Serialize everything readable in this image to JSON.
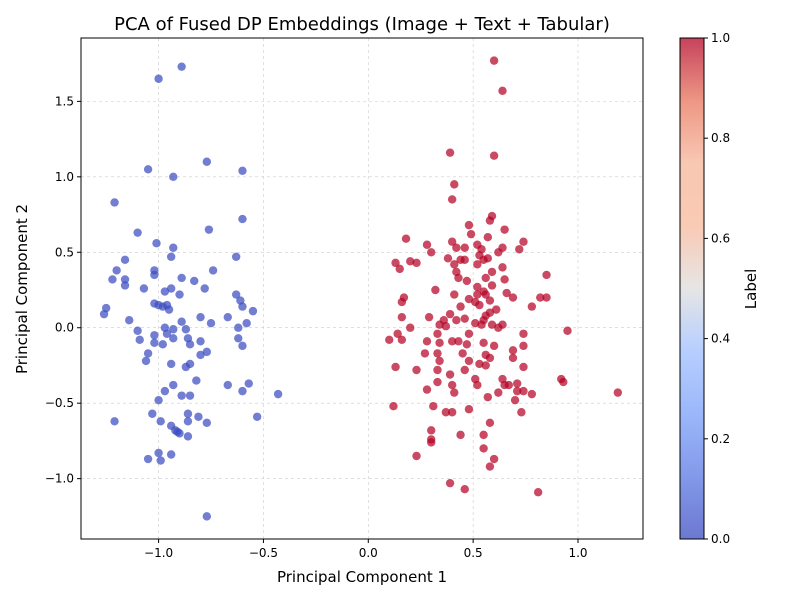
{
  "chart_data": {
    "type": "scatter",
    "title": "PCA of Fused DP Embeddings (Image + Text + Tabular)",
    "xlabel": "Principal Component 1",
    "ylabel": "Principal Component 2",
    "xlim": [
      -1.37,
      1.31
    ],
    "ylim": [
      -1.4,
      1.92
    ],
    "xticks": [
      -1.0,
      -0.5,
      0.0,
      0.5,
      1.0
    ],
    "xtick_labels": [
      "−1.0",
      "−0.5",
      "0.0",
      "0.5",
      "1.0"
    ],
    "yticks": [
      -1.0,
      -0.5,
      0.0,
      0.5,
      1.0,
      1.5
    ],
    "ytick_labels": [
      "−1.0",
      "−0.5",
      "0.0",
      "0.5",
      "1.0",
      "1.5"
    ],
    "grid": true,
    "colorbar": {
      "label": "Label",
      "range": [
        0.0,
        1.0
      ],
      "ticks": [
        0.0,
        0.2,
        0.4,
        0.6,
        0.8,
        1.0
      ],
      "tick_labels": [
        "0.0",
        "0.2",
        "0.4",
        "0.6",
        "0.8",
        "1.0"
      ],
      "colormap": "coolwarm",
      "low_color": "#3b4cc0",
      "mid_color": "#dddddd",
      "high_color": "#b40426"
    },
    "series": [
      {
        "label_value": 0,
        "color": "#3b4cc0",
        "points": [
          [
            -1.0,
            1.65
          ],
          [
            -0.89,
            1.73
          ],
          [
            -1.05,
            1.05
          ],
          [
            -0.93,
            1.0
          ],
          [
            -0.77,
            1.1
          ],
          [
            -0.6,
            1.04
          ],
          [
            -1.21,
            0.83
          ],
          [
            -0.6,
            0.72
          ],
          [
            -1.1,
            0.63
          ],
          [
            -0.76,
            0.65
          ],
          [
            -1.01,
            0.56
          ],
          [
            -0.93,
            0.53
          ],
          [
            -1.16,
            0.45
          ],
          [
            -0.94,
            0.47
          ],
          [
            -0.63,
            0.47
          ],
          [
            -1.2,
            0.38
          ],
          [
            -1.02,
            0.38
          ],
          [
            -0.74,
            0.38
          ],
          [
            -1.22,
            0.32
          ],
          [
            -1.16,
            0.32
          ],
          [
            -1.02,
            0.35
          ],
          [
            -0.89,
            0.33
          ],
          [
            -0.83,
            0.31
          ],
          [
            -1.16,
            0.28
          ],
          [
            -1.07,
            0.26
          ],
          [
            -0.94,
            0.26
          ],
          [
            -0.78,
            0.26
          ],
          [
            -0.97,
            0.24
          ],
          [
            -0.9,
            0.22
          ],
          [
            -0.63,
            0.22
          ],
          [
            -0.61,
            0.18
          ],
          [
            -1.02,
            0.16
          ],
          [
            -1.0,
            0.15
          ],
          [
            -0.98,
            0.14
          ],
          [
            -0.96,
            0.15
          ],
          [
            -0.95,
            0.12
          ],
          [
            -0.6,
            0.14
          ],
          [
            -1.25,
            0.13
          ],
          [
            -1.26,
            0.09
          ],
          [
            -0.55,
            0.11
          ],
          [
            -0.8,
            0.07
          ],
          [
            -0.67,
            0.07
          ],
          [
            -1.14,
            0.05
          ],
          [
            -0.89,
            0.04
          ],
          [
            -0.75,
            0.03
          ],
          [
            -0.58,
            0.03
          ],
          [
            -0.97,
            0.0
          ],
          [
            -0.93,
            -0.01
          ],
          [
            -0.87,
            -0.01
          ],
          [
            -0.62,
            0.0
          ],
          [
            -1.1,
            -0.02
          ],
          [
            -0.96,
            -0.04
          ],
          [
            -1.02,
            -0.05
          ],
          [
            -1.09,
            -0.08
          ],
          [
            -0.93,
            -0.07
          ],
          [
            -0.86,
            -0.07
          ],
          [
            -0.8,
            -0.09
          ],
          [
            -0.62,
            -0.07
          ],
          [
            -1.02,
            -0.1
          ],
          [
            -0.98,
            -0.11
          ],
          [
            -0.85,
            -0.11
          ],
          [
            -0.6,
            -0.12
          ],
          [
            -1.05,
            -0.17
          ],
          [
            -0.8,
            -0.18
          ],
          [
            -0.77,
            -0.16
          ],
          [
            -1.06,
            -0.22
          ],
          [
            -0.94,
            -0.24
          ],
          [
            -0.85,
            -0.24
          ],
          [
            -0.87,
            -0.26
          ],
          [
            -0.82,
            -0.35
          ],
          [
            -0.67,
            -0.38
          ],
          [
            -0.57,
            -0.37
          ],
          [
            -0.93,
            -0.38
          ],
          [
            -0.97,
            -0.42
          ],
          [
            -0.6,
            -0.42
          ],
          [
            -0.43,
            -0.44
          ],
          [
            -0.89,
            -0.45
          ],
          [
            -0.85,
            -0.45
          ],
          [
            -1.0,
            -0.48
          ],
          [
            -1.03,
            -0.57
          ],
          [
            -0.86,
            -0.57
          ],
          [
            -0.81,
            -0.59
          ],
          [
            -0.53,
            -0.59
          ],
          [
            -1.21,
            -0.62
          ],
          [
            -0.99,
            -0.62
          ],
          [
            -0.86,
            -0.62
          ],
          [
            -0.77,
            -0.63
          ],
          [
            -0.94,
            -0.65
          ],
          [
            -0.92,
            -0.68
          ],
          [
            -0.91,
            -0.69
          ],
          [
            -0.9,
            -0.7
          ],
          [
            -0.86,
            -0.72
          ],
          [
            -1.0,
            -0.83
          ],
          [
            -0.94,
            -0.84
          ],
          [
            -1.05,
            -0.87
          ],
          [
            -0.99,
            -0.88
          ],
          [
            -0.77,
            -1.25
          ]
        ]
      },
      {
        "label_value": 1,
        "color": "#b40426",
        "points": [
          [
            0.6,
            1.77
          ],
          [
            0.64,
            1.57
          ],
          [
            0.39,
            1.16
          ],
          [
            0.6,
            1.14
          ],
          [
            0.41,
            0.95
          ],
          [
            0.4,
            0.85
          ],
          [
            0.59,
            0.74
          ],
          [
            0.58,
            0.71
          ],
          [
            0.48,
            0.68
          ],
          [
            0.65,
            0.65
          ],
          [
            0.49,
            0.62
          ],
          [
            0.57,
            0.6
          ],
          [
            0.18,
            0.59
          ],
          [
            0.4,
            0.57
          ],
          [
            0.52,
            0.55
          ],
          [
            0.74,
            0.57
          ],
          [
            0.28,
            0.55
          ],
          [
            0.42,
            0.53
          ],
          [
            0.46,
            0.53
          ],
          [
            0.54,
            0.52
          ],
          [
            0.3,
            0.5
          ],
          [
            0.53,
            0.48
          ],
          [
            0.62,
            0.5
          ],
          [
            0.64,
            0.53
          ],
          [
            0.72,
            0.52
          ],
          [
            0.55,
            0.45
          ],
          [
            0.44,
            0.45
          ],
          [
            0.46,
            0.45
          ],
          [
            0.57,
            0.46
          ],
          [
            0.2,
            0.44
          ],
          [
            0.23,
            0.43
          ],
          [
            0.13,
            0.43
          ],
          [
            0.38,
            0.46
          ],
          [
            0.41,
            0.42
          ],
          [
            0.52,
            0.42
          ],
          [
            0.15,
            0.39
          ],
          [
            0.42,
            0.37
          ],
          [
            0.59,
            0.37
          ],
          [
            0.64,
            0.4
          ],
          [
            0.56,
            0.33
          ],
          [
            0.85,
            0.35
          ],
          [
            0.43,
            0.33
          ],
          [
            0.47,
            0.31
          ],
          [
            0.65,
            0.32
          ],
          [
            0.52,
            0.27
          ],
          [
            0.59,
            0.28
          ],
          [
            0.32,
            0.25
          ],
          [
            0.55,
            0.24
          ],
          [
            0.41,
            0.22
          ],
          [
            0.52,
            0.22
          ],
          [
            0.56,
            0.22
          ],
          [
            0.66,
            0.23
          ],
          [
            0.69,
            0.2
          ],
          [
            0.82,
            0.2
          ],
          [
            0.85,
            0.2
          ],
          [
            0.17,
            0.2
          ],
          [
            0.16,
            0.17
          ],
          [
            0.48,
            0.19
          ],
          [
            0.51,
            0.17
          ],
          [
            0.58,
            0.18
          ],
          [
            0.53,
            0.15
          ],
          [
            0.44,
            0.14
          ],
          [
            0.78,
            0.14
          ],
          [
            0.61,
            0.12
          ],
          [
            0.58,
            0.1
          ],
          [
            0.56,
            0.08
          ],
          [
            0.39,
            0.09
          ],
          [
            0.36,
            0.05
          ],
          [
            0.29,
            0.07
          ],
          [
            0.16,
            0.07
          ],
          [
            0.46,
            0.06
          ],
          [
            0.55,
            0.05
          ],
          [
            0.42,
            0.05
          ],
          [
            0.51,
            0.03
          ],
          [
            0.54,
            0.02
          ],
          [
            0.59,
            0.02
          ],
          [
            0.64,
            0.02
          ],
          [
            0.62,
            0.0
          ],
          [
            0.2,
            0.0
          ],
          [
            0.34,
            0.02
          ],
          [
            0.37,
            0.01
          ],
          [
            0.14,
            -0.04
          ],
          [
            0.33,
            -0.04
          ],
          [
            0.48,
            -0.04
          ],
          [
            0.74,
            -0.04
          ],
          [
            0.95,
            -0.02
          ],
          [
            0.1,
            -0.08
          ],
          [
            0.16,
            -0.08
          ],
          [
            0.28,
            -0.09
          ],
          [
            0.34,
            -0.1
          ],
          [
            0.4,
            -0.09
          ],
          [
            0.43,
            -0.09
          ],
          [
            0.47,
            -0.11
          ],
          [
            0.55,
            -0.1
          ],
          [
            0.6,
            -0.12
          ],
          [
            0.69,
            -0.15
          ],
          [
            0.74,
            -0.12
          ],
          [
            0.27,
            -0.17
          ],
          [
            0.33,
            -0.17
          ],
          [
            0.45,
            -0.17
          ],
          [
            0.56,
            -0.18
          ],
          [
            0.58,
            -0.2
          ],
          [
            0.69,
            -0.2
          ],
          [
            0.34,
            -0.22
          ],
          [
            0.48,
            -0.22
          ],
          [
            0.53,
            -0.24
          ],
          [
            0.56,
            -0.25
          ],
          [
            0.74,
            -0.26
          ],
          [
            0.13,
            -0.26
          ],
          [
            0.23,
            -0.28
          ],
          [
            0.33,
            -0.28
          ],
          [
            0.46,
            -0.28
          ],
          [
            0.39,
            -0.31
          ],
          [
            0.51,
            -0.34
          ],
          [
            0.64,
            -0.34
          ],
          [
            0.33,
            -0.36
          ],
          [
            0.4,
            -0.38
          ],
          [
            0.52,
            -0.38
          ],
          [
            0.65,
            -0.38
          ],
          [
            0.67,
            -0.38
          ],
          [
            0.71,
            -0.37
          ],
          [
            0.92,
            -0.34
          ],
          [
            0.93,
            -0.36
          ],
          [
            0.28,
            -0.41
          ],
          [
            0.41,
            -0.43
          ],
          [
            0.62,
            -0.43
          ],
          [
            0.71,
            -0.42
          ],
          [
            0.74,
            -0.42
          ],
          [
            0.78,
            -0.44
          ],
          [
            0.57,
            -0.46
          ],
          [
            0.7,
            -0.48
          ],
          [
            0.31,
            -0.52
          ],
          [
            0.12,
            -0.52
          ],
          [
            0.48,
            -0.54
          ],
          [
            0.73,
            -0.56
          ],
          [
            0.37,
            -0.56
          ],
          [
            0.4,
            -0.56
          ],
          [
            0.58,
            -0.63
          ],
          [
            0.3,
            -0.68
          ],
          [
            0.3,
            -0.74
          ],
          [
            0.55,
            -0.71
          ],
          [
            0.44,
            -0.71
          ],
          [
            0.3,
            -0.76
          ],
          [
            0.55,
            -0.8
          ],
          [
            0.23,
            -0.85
          ],
          [
            0.6,
            -0.87
          ],
          [
            0.58,
            -0.92
          ],
          [
            0.39,
            -1.03
          ],
          [
            0.46,
            -1.07
          ],
          [
            0.81,
            -1.09
          ],
          [
            1.19,
            -0.43
          ]
        ]
      }
    ]
  }
}
